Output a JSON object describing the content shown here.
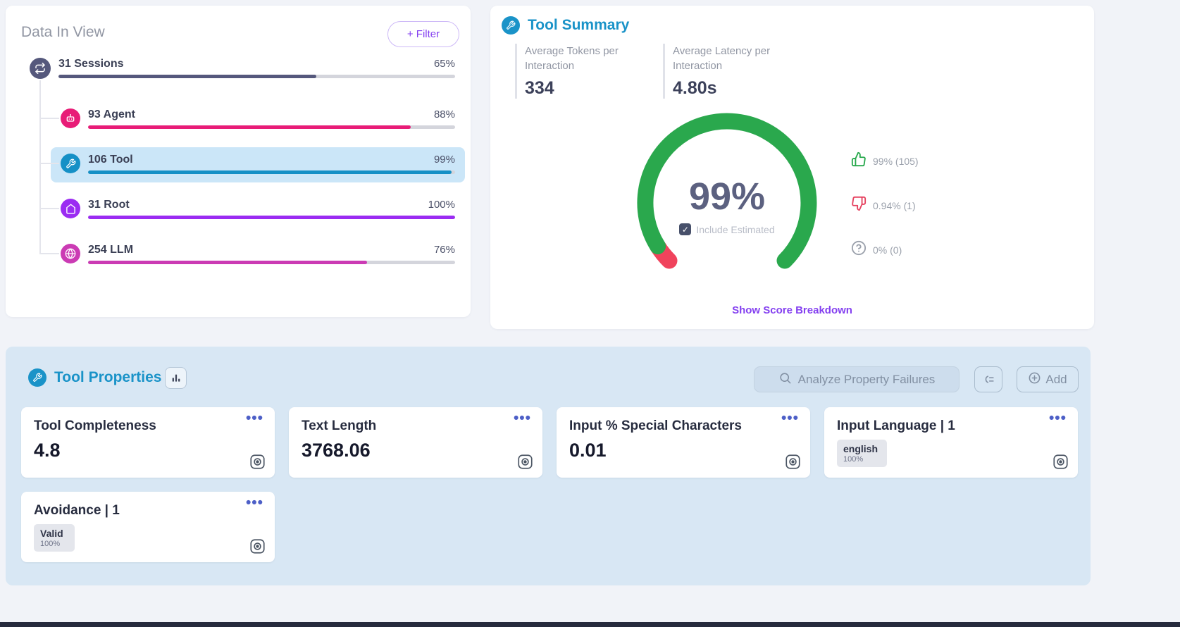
{
  "colors": {
    "accent_blue": "#1a93c8",
    "link_purple": "#8440f0",
    "gauge_green": "#2aa84d",
    "gauge_red": "#f0435c",
    "panel_blue": "#d8e7f4"
  },
  "data_in_view": {
    "title": "Data In View",
    "filter_button_label": "+ Filter",
    "rows": [
      {
        "label": "31 Sessions",
        "percent_label": "65%",
        "percent": 65,
        "color": "#55587c",
        "icon": "sessions-icon",
        "selected": false
      },
      {
        "label": "93 Agent",
        "percent_label": "88%",
        "percent": 88,
        "color": "#e81c77",
        "icon": "agent-icon",
        "selected": false
      },
      {
        "label": "106 Tool",
        "percent_label": "99%",
        "percent": 99,
        "color": "#1590c6",
        "icon": "tool-icon",
        "selected": true
      },
      {
        "label": "31 Root",
        "percent_label": "100%",
        "percent": 100,
        "color": "#9b2cf2",
        "icon": "root-icon",
        "selected": false
      },
      {
        "label": "254 LLM",
        "percent_label": "76%",
        "percent": 76,
        "color": "#cb3bb4",
        "icon": "llm-icon",
        "selected": false
      }
    ]
  },
  "tool_summary": {
    "title": "Tool Summary",
    "stats": [
      {
        "label": "Average Tokens per Interaction",
        "value": "334"
      },
      {
        "label": "Average Latency per Interaction",
        "value": "4.80s"
      }
    ],
    "gauge": {
      "value_label": "99%",
      "percent": 99,
      "include_estimated_label": "Include Estimated",
      "include_estimated_checked": true
    },
    "feedback": [
      {
        "icon": "thumbs-up-icon",
        "label": "99% (105)"
      },
      {
        "icon": "thumbs-down-icon",
        "label": "0.94% (1)"
      },
      {
        "icon": "question-icon",
        "label": "0% (0)"
      }
    ],
    "breakdown_link_label": "Show Score Breakdown"
  },
  "tool_properties": {
    "title": "Tool Properties",
    "analyze_button_label": "Analyze Property Failures",
    "add_button_label": "Add",
    "cards": [
      {
        "title": "Tool Completeness",
        "value": "4.8"
      },
      {
        "title": "Text Length",
        "value": "3768.06"
      },
      {
        "title": "Input % Special Characters",
        "value": "0.01"
      },
      {
        "title": "Input Language | 1",
        "badge_label": "english",
        "badge_percent": "100%"
      },
      {
        "title": "Avoidance | 1",
        "badge_label": "Valid",
        "badge_percent": "100%"
      }
    ]
  }
}
